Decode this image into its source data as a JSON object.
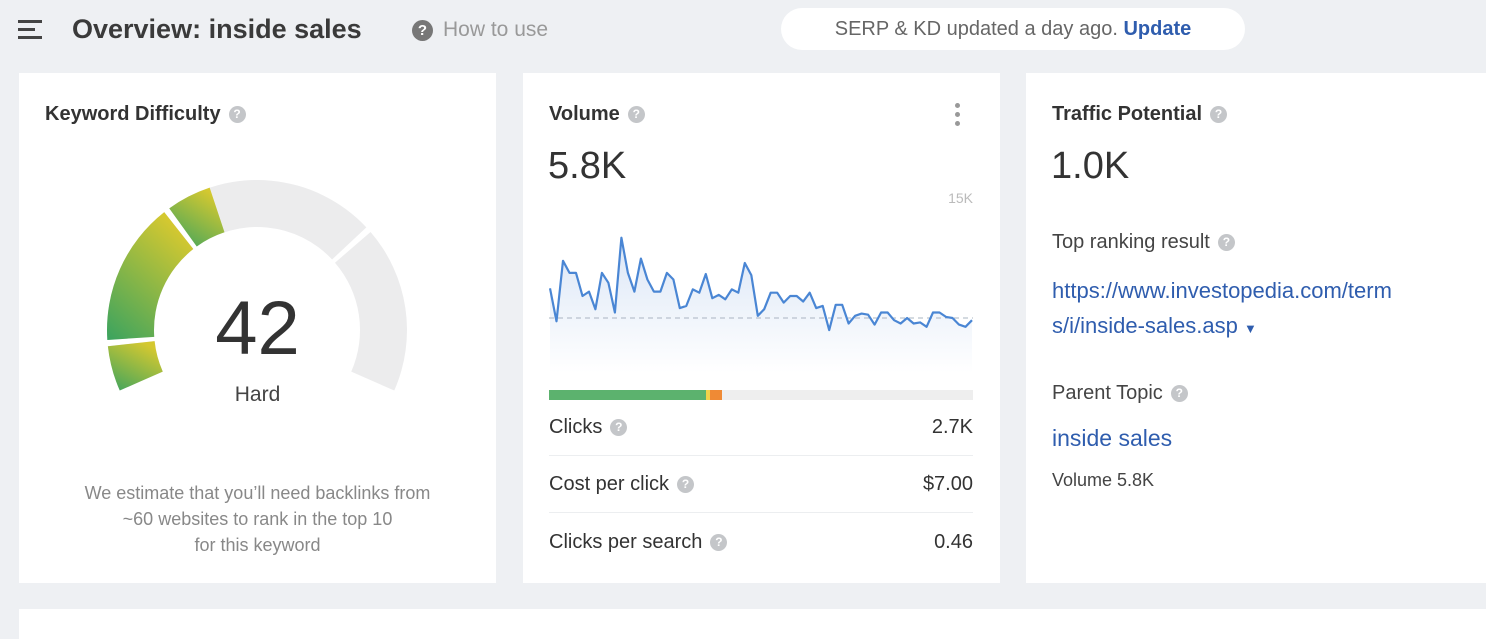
{
  "header": {
    "title": "Overview: inside sales",
    "how_to_use": "How to use",
    "update_notice": "SERP & KD updated a day ago.",
    "update_link": "Update"
  },
  "kd": {
    "title": "Keyword Difficulty",
    "score": "42",
    "score_value": 42,
    "label": "Hard",
    "note_lines": [
      "We estimate that you’ll need backlinks from",
      "~60 websites to rank in the top 10",
      "for this keyword"
    ],
    "colors": {
      "fill_start": "#3aa35f",
      "fill_end": "#d4c830",
      "track": "#ececed"
    }
  },
  "volume": {
    "title": "Volume",
    "value": "5.8K",
    "clicks_bar": {
      "segment_1": 0.37,
      "segment_2": 0.01,
      "segment_3": 0.028,
      "colors": [
        "#5cb26e",
        "#f2d24b",
        "#ef8a35"
      ]
    },
    "metrics": [
      {
        "label": "Clicks",
        "value": "2.7K"
      },
      {
        "label": "Cost per click",
        "value": "$7.00"
      },
      {
        "label": "Clicks per search",
        "value": "0.46"
      }
    ]
  },
  "chart_data": {
    "type": "area",
    "unit": "K",
    "ylim": [
      0,
      15
    ],
    "ymax_label": "15K",
    "reference_line": 5.0,
    "line_color": "#4a86d4",
    "values": [
      7.7,
      4.7,
      10.2,
      9.1,
      9.1,
      7.0,
      7.4,
      5.8,
      9.1,
      8.2,
      5.5,
      12.3,
      9.1,
      7.4,
      10.4,
      8.5,
      7.4,
      7.4,
      9.1,
      8.5,
      5.9,
      6.1,
      7.6,
      7.3,
      9.0,
      6.8,
      7.1,
      6.7,
      7.6,
      7.3,
      10.0,
      8.9,
      5.2,
      5.8,
      7.3,
      7.3,
      6.4,
      7.0,
      7.0,
      6.5,
      7.3,
      5.9,
      6.1,
      3.9,
      6.2,
      6.2,
      4.5,
      5.2,
      5.4,
      5.3,
      4.4,
      5.5,
      5.5,
      4.8,
      4.5,
      5.0,
      4.5,
      4.6,
      4.2,
      5.5,
      5.5,
      5.1,
      5.0,
      4.4,
      4.2,
      4.8
    ]
  },
  "traffic": {
    "title": "Traffic Potential",
    "value": "1.0K",
    "top_result_label": "Top ranking result",
    "top_result_url_line1": "https://www.investopedia.com/term",
    "top_result_url_line2": "s/i/inside-sales.asp",
    "parent_topic_label": "Parent Topic",
    "parent_topic": "inside sales",
    "parent_volume": "Volume 5.8K"
  }
}
